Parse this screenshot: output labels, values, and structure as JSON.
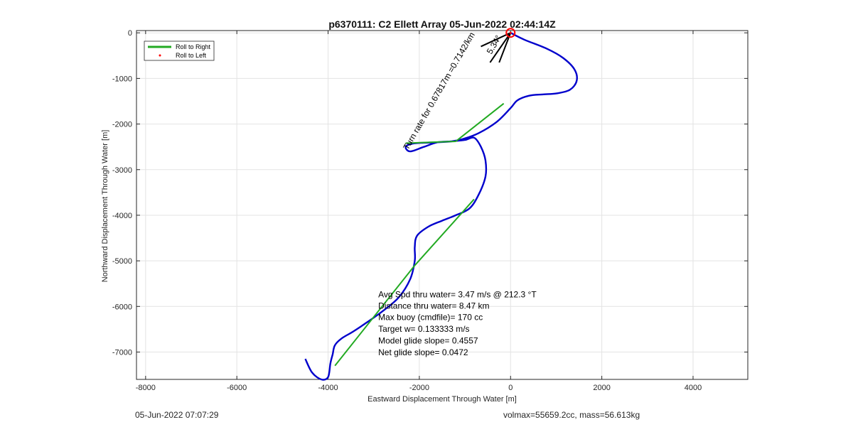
{
  "chart_data": {
    "type": "line",
    "title": "p6370111: C2 Ellett Array 05-Jun-2022 02:44:14Z",
    "xlabel": "Eastward Displacement Through Water [m]",
    "ylabel": "Northward Displacement Through Water [m]",
    "xlim": [
      -8200,
      5200
    ],
    "ylim": [
      -7600,
      50
    ],
    "xticks": [
      -8000,
      -6000,
      -4000,
      -2000,
      0,
      2000,
      4000
    ],
    "yticks": [
      0,
      -1000,
      -2000,
      -3000,
      -4000,
      -5000,
      -6000,
      -7000
    ],
    "grid": true,
    "legend": {
      "position": "top-left",
      "entries": [
        {
          "label": "Roll to Right",
          "color": "#22aa22",
          "marker": "line"
        },
        {
          "label": "Roll to Left",
          "color": "#ff0000",
          "marker": "dot"
        }
      ]
    },
    "series": [
      {
        "type": "track",
        "color": "#0000cc",
        "x": [
          0,
          300,
          800,
          1150,
          1400,
          1450,
          1300,
          1000,
          700,
          400,
          150,
          0,
          -300,
          -700,
          -1050,
          -1300,
          -1600,
          -1900,
          -2150,
          -2300,
          -2200,
          -1900,
          -1600,
          -1300,
          -1000,
          -800,
          -650,
          -550,
          -550,
          -700,
          -900,
          -1200,
          -1500,
          -1800,
          -2050,
          -2100,
          -2100,
          -2200,
          -2450,
          -2800,
          -3150,
          -3450,
          -3700,
          -3850,
          -3900,
          -3950,
          -4000,
          -4150,
          -4350,
          -4500
        ],
        "y": [
          0,
          -150,
          -350,
          -550,
          -800,
          -1050,
          -1250,
          -1330,
          -1350,
          -1380,
          -1480,
          -1650,
          -1950,
          -2200,
          -2330,
          -2380,
          -2400,
          -2410,
          -2430,
          -2500,
          -2600,
          -2500,
          -2400,
          -2380,
          -2350,
          -2300,
          -2500,
          -2800,
          -3150,
          -3550,
          -3850,
          -4000,
          -4120,
          -4250,
          -4450,
          -4700,
          -5000,
          -5400,
          -5800,
          -6100,
          -6350,
          -6550,
          -6700,
          -6850,
          -7050,
          -7250,
          -7550,
          -7600,
          -7450,
          -7150
        ]
      },
      {
        "type": "segments",
        "name": "Roll to Right",
        "color": "#22aa22",
        "segments": [
          {
            "x": [
              -150,
              -1200
            ],
            "y": [
              -1550,
              -2380
            ]
          },
          {
            "x": [
              -1200,
              -2300
            ],
            "y": [
              -2380,
              -2420
            ]
          },
          {
            "x": [
              -800,
              -2100
            ],
            "y": [
              -3650,
              -5100
            ]
          },
          {
            "x": [
              -2100,
              -3850
            ],
            "y": [
              -5100,
              -7300
            ]
          }
        ]
      },
      {
        "type": "heading-lines",
        "color": "#000000",
        "segments": [
          {
            "x": [
              0,
              -650
            ],
            "y": [
              0,
              -300
            ]
          },
          {
            "x": [
              0,
              -450
            ],
            "y": [
              0,
              -650
            ]
          },
          {
            "x": [
              0,
              -250
            ],
            "y": [
              0,
              -650
            ]
          }
        ]
      },
      {
        "type": "marker",
        "name": "Roll to Left",
        "color": "#ff0000",
        "x": [
          0
        ],
        "y": [
          0
        ]
      }
    ],
    "annotations": [
      {
        "text": "Turn rate for 0.67817m =0.7142/km",
        "x": -2250,
        "y": -2580,
        "angle": -60
      },
      {
        "text": "5.34°",
        "x": -420,
        "y": -480,
        "angle": -60
      },
      {
        "text": "Avg Spd thru water=  3.47 m/s @ 212.3 °T",
        "x": -2900,
        "y": -5800
      },
      {
        "text": "Distance thru water=  8.47 km",
        "x": -2900,
        "y": -6050
      },
      {
        "text": "Max buoy (cmdfile)= 170 cc",
        "x": -2900,
        "y": -6300
      },
      {
        "text": "Target w= 0.133333 m/s",
        "x": -2900,
        "y": -6560
      },
      {
        "text": "Model glide slope= 0.4557",
        "x": -2900,
        "y": -6810
      },
      {
        "text": "Net glide slope= 0.0472",
        "x": -2900,
        "y": -7070
      }
    ]
  },
  "footer": {
    "timestamp": "05-Jun-2022 07:07:29",
    "volmass": "volmax=55659.2cc, mass=56.613kg"
  }
}
